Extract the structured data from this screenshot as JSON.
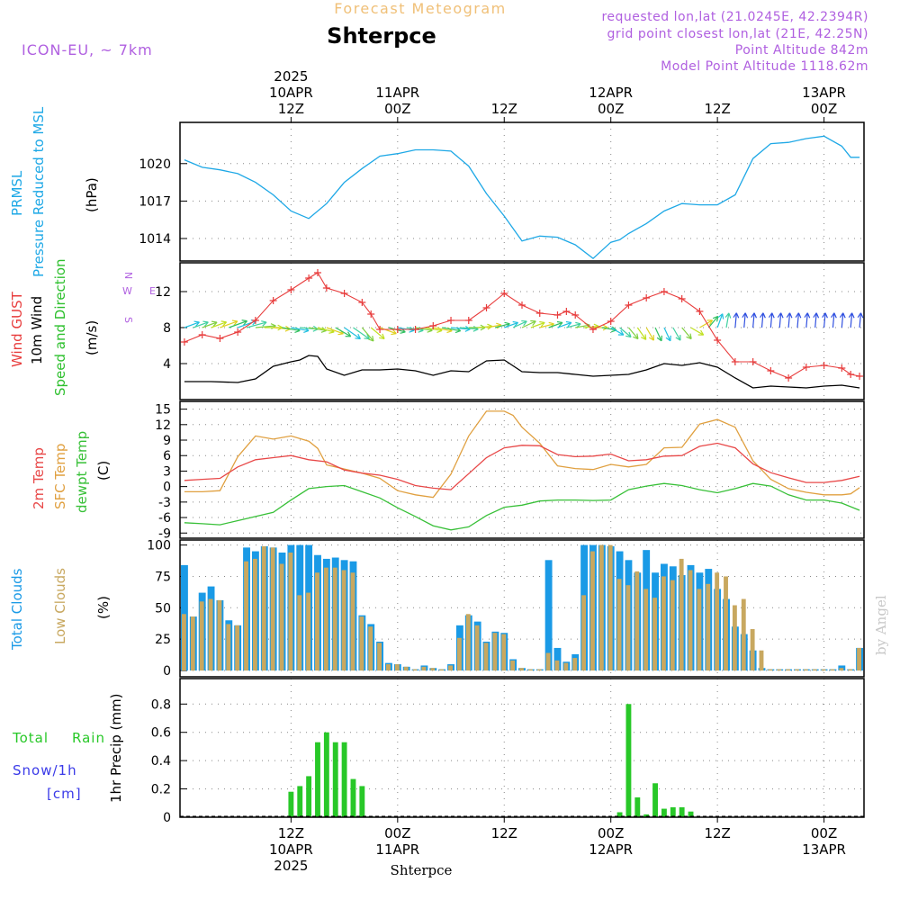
{
  "header": {
    "title_top": "Forecast Meteogram",
    "station": "Shterpce",
    "model": "ICON-EU, ~ 7km",
    "requested": "requested lon,lat (21.0245E, 42.2394R)",
    "grid_point": "grid point closest lon,lat (21E, 42.25N)",
    "point_alt": "Point Altitude 842m",
    "model_alt": "Model Point Altitude 1118.62m"
  },
  "time_axis": {
    "ticks": [
      {
        "h": 12,
        "top": [
          "2025",
          "10APR",
          "12Z"
        ],
        "bottom": [
          "12Z",
          "10APR",
          "2025"
        ]
      },
      {
        "h": 24,
        "top": [
          "11APR",
          "00Z"
        ],
        "bottom": [
          "00Z",
          "11APR"
        ]
      },
      {
        "h": 36,
        "top": [
          "12Z"
        ],
        "bottom": [
          "12Z"
        ]
      },
      {
        "h": 48,
        "top": [
          "12APR",
          "00Z"
        ],
        "bottom": [
          "00Z",
          "12APR"
        ]
      },
      {
        "h": 60,
        "top": [
          "12Z"
        ],
        "bottom": [
          "12Z"
        ]
      },
      {
        "h": 72,
        "top": [
          "13APR",
          "00Z"
        ],
        "bottom": [
          "00Z",
          "13APR"
        ]
      }
    ],
    "footer": "Shterpce",
    "watermark": "by Angel"
  },
  "colors": {
    "pressure": "#1ea8e6",
    "gust": "#e83c3c",
    "wind": "#000000",
    "wind_dir": "#2ec02e",
    "temp2m": "#e84848",
    "sfc": "#e0a040",
    "dewpt": "#38c038",
    "total_clouds": "#1a9ae6",
    "low_clouds": "#c8a860",
    "rain": "#28c828",
    "snow": "#3a3ae8",
    "compass": "#b060e0",
    "header_purple": "#b060e0",
    "title_orange": "#f0c078"
  },
  "chart_data": [
    {
      "type": "line",
      "name": "pressure",
      "ylabel": [
        "PRMSL",
        "Pressure Reduced to MSL",
        "(hPa)"
      ],
      "yticks": [
        1014,
        1017,
        1020
      ],
      "ylim": [
        1012.2,
        1023.3
      ],
      "grid": true,
      "series": [
        {
          "name": "PRMSL",
          "x": [
            0,
            2,
            4,
            6,
            8,
            10,
            12,
            14,
            16,
            18,
            20,
            22,
            24,
            26,
            28,
            30,
            32,
            34,
            36,
            38,
            40,
            42,
            44,
            46,
            48,
            49,
            50,
            52,
            54,
            56,
            58,
            60,
            62,
            64,
            66,
            68,
            70,
            72,
            74,
            75,
            76
          ],
          "y": [
            1020.3,
            1019.7,
            1019.5,
            1019.2,
            1018.5,
            1017.5,
            1016.2,
            1015.6,
            1016.8,
            1018.5,
            1019.6,
            1020.6,
            1020.8,
            1021.1,
            1021.1,
            1021.0,
            1019.8,
            1017.6,
            1015.8,
            1013.8,
            1014.2,
            1014.1,
            1013.5,
            1012.4,
            1013.7,
            1013.9,
            1014.4,
            1015.2,
            1016.2,
            1016.8,
            1016.7,
            1016.7,
            1017.5,
            1020.4,
            1021.6,
            1021.7,
            1022.0,
            1022.2,
            1021.4,
            1020.5,
            1020.5
          ]
        }
      ]
    },
    {
      "type": "line",
      "name": "wind",
      "ylabel": [
        "Wind GUST",
        "10m Wind",
        "Speed and Direction",
        "(m/s)"
      ],
      "yticks": [
        4,
        8,
        12
      ],
      "ylim": [
        0,
        15.2
      ],
      "grid": true,
      "compass": [
        "N",
        "S",
        "W",
        "E"
      ],
      "series": [
        {
          "name": "Wind GUST",
          "x": [
            0,
            2,
            4,
            6,
            8,
            10,
            12,
            14,
            15,
            16,
            18,
            20,
            21,
            22,
            24,
            26,
            28,
            30,
            32,
            34,
            36,
            38,
            40,
            42,
            43,
            44,
            46,
            48,
            50,
            52,
            54,
            56,
            58,
            60,
            62,
            64,
            66,
            68,
            70,
            72,
            74,
            75,
            76
          ],
          "y": [
            6.4,
            7.2,
            6.8,
            7.5,
            8.8,
            11,
            12.2,
            13.5,
            14.1,
            12.4,
            11.8,
            10.8,
            9.5,
            7.8,
            7.8,
            7.8,
            8.2,
            8.8,
            8.8,
            10.2,
            11.8,
            10.5,
            9.6,
            9.4,
            9.8,
            9.4,
            7.8,
            8.7,
            10.5,
            11.3,
            12,
            11.2,
            9.8,
            6.6,
            4.2,
            4.2,
            3.2,
            2.4,
            3.6,
            3.8,
            3.5,
            2.8,
            2.6
          ]
        },
        {
          "name": "10m Wind",
          "x": [
            0,
            3,
            6,
            8,
            10,
            12,
            13,
            14,
            15,
            16,
            18,
            20,
            22,
            24,
            26,
            28,
            30,
            32,
            34,
            36,
            38,
            40,
            42,
            44,
            46,
            48,
            50,
            52,
            54,
            56,
            58,
            60,
            62,
            64,
            66,
            68,
            70,
            72,
            74,
            76
          ],
          "y": [
            2,
            2,
            1.9,
            2.3,
            3.7,
            4.2,
            4.4,
            4.9,
            4.8,
            3.4,
            2.7,
            3.3,
            3.3,
            3.4,
            3.2,
            2.7,
            3.2,
            3.1,
            4.3,
            4.4,
            3.1,
            3,
            3,
            2.8,
            2.6,
            2.7,
            2.8,
            3.3,
            4,
            3.8,
            4.1,
            3.6,
            2.4,
            1.3,
            1.5,
            1.4,
            1.3,
            1.5,
            1.6,
            1.3
          ]
        }
      ],
      "wind_dir": {
        "x": [
          0,
          1,
          2,
          3,
          4,
          5,
          6,
          7,
          8,
          9,
          10,
          11,
          12,
          13,
          14,
          15,
          16,
          17,
          18,
          19,
          20,
          21,
          22,
          23,
          24,
          25,
          26,
          27,
          28,
          29,
          30,
          31,
          32,
          33,
          34,
          35,
          36,
          37,
          38,
          39,
          40,
          41,
          42,
          43,
          44,
          45,
          46,
          47,
          48,
          49,
          50,
          51,
          52,
          53,
          54,
          55,
          56,
          57,
          58,
          59,
          60,
          61,
          62,
          63,
          64,
          65,
          66,
          67,
          68,
          69,
          70,
          71,
          72,
          73,
          74,
          75,
          76
        ],
        "dir_deg": [
          250,
          250,
          250,
          250,
          250,
          250,
          250,
          255,
          265,
          270,
          275,
          280,
          280,
          275,
          280,
          285,
          290,
          300,
          305,
          305,
          320,
          310,
          290,
          285,
          280,
          280,
          280,
          280,
          280,
          280,
          275,
          275,
          270,
          265,
          260,
          255,
          250,
          245,
          245,
          250,
          255,
          250,
          250,
          255,
          260,
          265,
          270,
          280,
          300,
          310,
          320,
          325,
          330,
          335,
          335,
          330,
          320,
          300,
          240,
          220,
          200,
          190,
          185,
          185,
          185,
          185,
          185,
          185,
          185,
          185,
          185,
          185,
          185,
          185,
          185,
          185,
          185
        ]
      }
    },
    {
      "type": "line",
      "name": "temperature",
      "ylabel": [
        "2m Temp",
        "SFC Temp",
        "dewpt Temp",
        "(C)"
      ],
      "yticks": [
        -9,
        -6,
        -3,
        0,
        3,
        6,
        9,
        12,
        15
      ],
      "ylim": [
        -10,
        16.5
      ],
      "grid": true,
      "series": [
        {
          "name": "2m Temp",
          "x": [
            0,
            2,
            4,
            6,
            8,
            10,
            12,
            14,
            16,
            18,
            20,
            22,
            24,
            26,
            28,
            30,
            32,
            34,
            36,
            38,
            40,
            42,
            44,
            46,
            48,
            50,
            52,
            54,
            56,
            58,
            60,
            62,
            64,
            66,
            68,
            70,
            72,
            74,
            76
          ],
          "y": [
            1.2,
            1.4,
            1.6,
            3.8,
            5.2,
            5.6,
            6,
            5.2,
            4.8,
            3.2,
            2.6,
            2.2,
            1.4,
            0.2,
            -0.3,
            -0.6,
            2.5,
            5.6,
            7.5,
            8,
            7.9,
            6.2,
            5.8,
            5.9,
            6.3,
            5,
            5.2,
            5.9,
            6,
            7.8,
            8.4,
            7.5,
            4.4,
            2.7,
            1.7,
            0.8,
            0.8,
            1.2,
            2
          ]
        },
        {
          "name": "SFC Temp",
          "x": [
            0,
            2,
            4,
            6,
            8,
            10,
            12,
            14,
            15,
            16,
            18,
            20,
            22,
            24,
            26,
            28,
            30,
            32,
            34,
            36,
            37,
            38,
            40,
            42,
            44,
            46,
            48,
            50,
            52,
            54,
            56,
            58,
            60,
            62,
            64,
            66,
            68,
            70,
            72,
            74,
            75,
            76
          ],
          "y": [
            -1,
            -1,
            -0.8,
            5.8,
            9.8,
            9.2,
            9.8,
            8.8,
            7.4,
            4.2,
            3.4,
            2.6,
            1.6,
            -0.8,
            -1.6,
            -2.1,
            2.4,
            9.8,
            14.6,
            14.6,
            13.8,
            11.5,
            8.4,
            4,
            3.5,
            3.3,
            4.3,
            3.8,
            4.3,
            7.5,
            7.6,
            12.1,
            13,
            11.5,
            5,
            1.4,
            -0.4,
            -1.1,
            -1.6,
            -1.6,
            -1.4,
            -0.2
          ]
        },
        {
          "name": "dewpt Temp",
          "x": [
            0,
            2,
            4,
            6,
            8,
            10,
            12,
            14,
            16,
            18,
            20,
            22,
            24,
            26,
            28,
            30,
            32,
            34,
            36,
            38,
            40,
            42,
            44,
            46,
            48,
            50,
            52,
            54,
            56,
            58,
            60,
            62,
            64,
            66,
            68,
            70,
            72,
            74,
            76
          ],
          "y": [
            -7,
            -7.2,
            -7.4,
            -6.6,
            -5.8,
            -5,
            -2.6,
            -0.4,
            0,
            0.2,
            -1,
            -2.2,
            -4.1,
            -5.8,
            -7.6,
            -8.4,
            -7.8,
            -5.6,
            -4,
            -3.6,
            -2.8,
            -2.6,
            -2.6,
            -2.7,
            -2.6,
            -0.6,
            0.1,
            0.6,
            0.2,
            -0.6,
            -1.2,
            -0.4,
            0.6,
            0.1,
            -1.6,
            -2.6,
            -2.6,
            -3.2,
            -4.6
          ]
        }
      ]
    },
    {
      "type": "bar",
      "name": "clouds",
      "ylabel": [
        "Total Clouds",
        "Low Clouds",
        "(%)"
      ],
      "yticks": [
        0,
        25,
        50,
        75,
        100
      ],
      "ylim": [
        -5,
        104
      ],
      "grid": true,
      "x": [
        0,
        1,
        2,
        3,
        4,
        5,
        6,
        7,
        8,
        9,
        10,
        11,
        12,
        13,
        14,
        15,
        16,
        17,
        18,
        19,
        20,
        21,
        22,
        23,
        24,
        25,
        26,
        27,
        28,
        29,
        30,
        31,
        32,
        33,
        34,
        35,
        36,
        37,
        38,
        39,
        40,
        41,
        42,
        43,
        44,
        45,
        46,
        47,
        48,
        49,
        50,
        51,
        52,
        53,
        54,
        55,
        56,
        57,
        58,
        59,
        60,
        61,
        62,
        63,
        64,
        65,
        66,
        67,
        68,
        69,
        70,
        71,
        72,
        73,
        74,
        75,
        76
      ],
      "series": [
        {
          "name": "Total Clouds",
          "values": [
            84,
            43,
            62,
            67,
            56,
            40,
            36,
            98,
            95,
            99,
            98,
            94,
            100,
            100,
            100,
            92,
            89,
            90,
            88,
            87,
            44,
            37,
            23,
            6,
            5,
            3,
            1,
            4,
            2,
            1,
            5,
            36,
            44,
            39,
            23,
            31,
            30,
            9,
            2,
            1,
            1,
            88,
            18,
            7,
            13,
            100,
            100,
            100,
            99,
            95,
            88,
            78,
            96,
            78,
            85,
            83,
            76,
            84,
            78,
            81,
            65,
            57,
            35,
            29,
            16,
            2,
            1,
            1,
            1,
            1,
            1,
            1,
            1,
            1,
            4,
            1,
            18
          ],
          "colors_from_palette": "total_clouds"
        },
        {
          "name": "Low Clouds",
          "values": [
            45,
            43,
            55,
            57,
            56,
            37,
            36,
            87,
            89,
            99,
            98,
            85,
            94,
            60,
            62,
            78,
            82,
            82,
            80,
            78,
            43,
            35,
            22,
            5,
            5,
            3,
            1,
            3,
            2,
            1,
            4,
            26,
            45,
            36,
            22,
            30,
            29,
            8,
            2,
            1,
            1,
            14,
            8,
            6,
            10,
            60,
            95,
            100,
            100,
            73,
            68,
            79,
            65,
            58,
            75,
            72,
            89,
            80,
            65,
            69,
            78,
            75,
            52,
            57,
            33,
            16,
            1,
            1,
            1,
            1,
            1,
            1,
            1,
            1,
            2,
            1,
            18
          ],
          "colors_from_palette": "low_clouds"
        }
      ]
    },
    {
      "type": "bar",
      "name": "precip",
      "ylabel": [
        "1hr Precip (mm)"
      ],
      "legend": [
        "Total",
        "Rain",
        "Snow/1h",
        "[cm]"
      ],
      "yticks": [
        0,
        0.2,
        0.4,
        0.6,
        0.8
      ],
      "ylim": [
        0,
        0.98
      ],
      "grid": true,
      "x": [
        11,
        12,
        13,
        14,
        15,
        16,
        17,
        18,
        19,
        20,
        21,
        49,
        50,
        51,
        52,
        53,
        54,
        55,
        56,
        57
      ],
      "series": [
        {
          "name": "Total Rain",
          "values": [
            0.005,
            0.18,
            0.22,
            0.29,
            0.53,
            0.6,
            0.53,
            0.53,
            0.27,
            0.22,
            0.005,
            0.035,
            0.8,
            0.14,
            0.02,
            0.24,
            0.06,
            0.07,
            0.07,
            0.04
          ]
        }
      ]
    }
  ]
}
